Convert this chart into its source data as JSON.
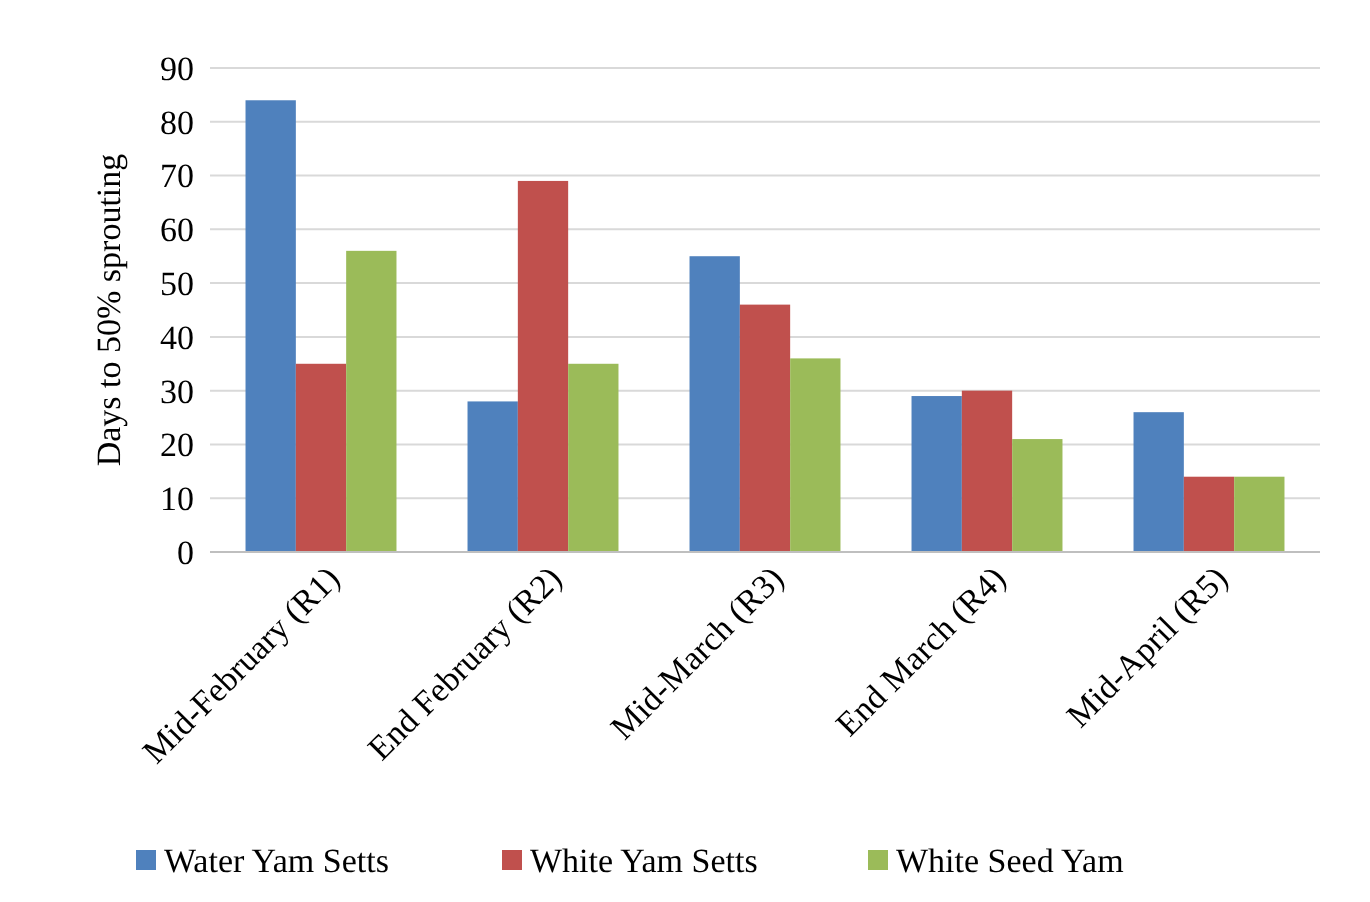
{
  "chart_data": {
    "type": "bar",
    "ylabel": "Days to 50% sprouting",
    "categories": [
      "Mid-February (R1)",
      "End February (R2)",
      "Mid-March (R3)",
      "End March (R4)",
      "Mid-April (R5)"
    ],
    "series": [
      {
        "name": "Water Yam Setts",
        "color": "#4f81bd",
        "values": [
          84,
          28,
          55,
          29,
          26
        ]
      },
      {
        "name": "White Yam Setts",
        "color": "#c0504d",
        "values": [
          35,
          69,
          46,
          30,
          14
        ]
      },
      {
        "name": "White Seed Yam",
        "color": "#9bbb59",
        "values": [
          56,
          35,
          36,
          21,
          14
        ]
      }
    ],
    "ylim": [
      0,
      90
    ],
    "yticks": [
      0,
      10,
      20,
      30,
      40,
      50,
      60,
      70,
      80,
      90
    ],
    "grid": "y",
    "legend": "bottom"
  }
}
